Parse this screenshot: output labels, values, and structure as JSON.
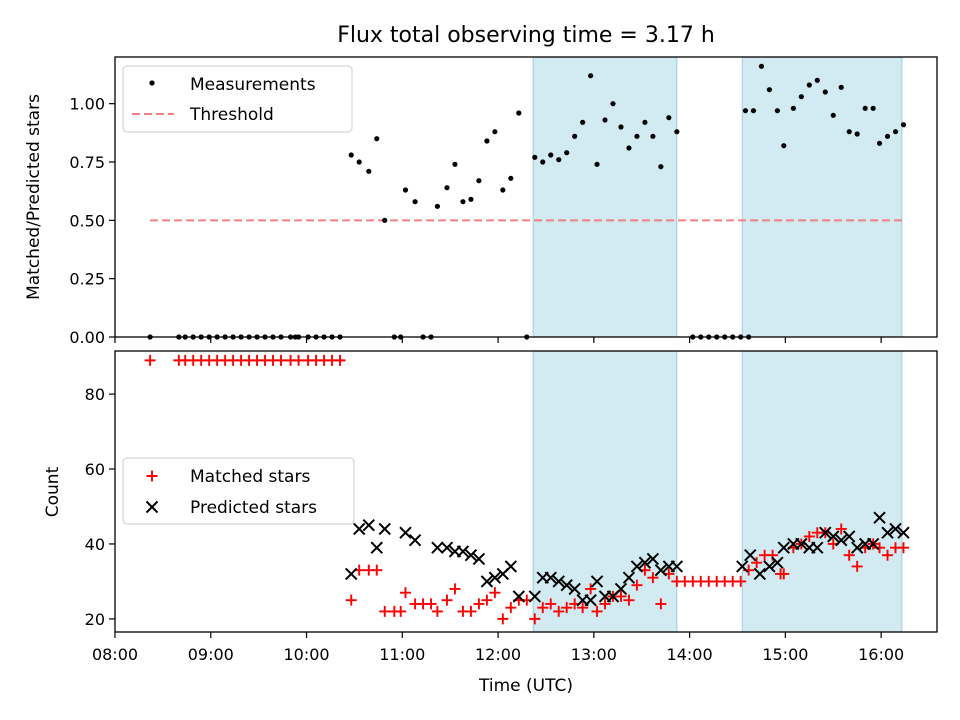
{
  "chart_data": [
    {
      "type": "scatter",
      "title": "Flux total observing time = 3.17 h",
      "xlabel": "",
      "ylabel": "Matched/Predicted stars",
      "xlim": [
        "08:00",
        "16:35"
      ],
      "ylim": [
        0.0,
        1.2
      ],
      "yticks": [
        "0.00",
        "0.25",
        "0.50",
        "0.75",
        "1.00"
      ],
      "yticks_values": [
        0,
        0.25,
        0.5,
        0.75,
        1.0
      ],
      "xtick_labels_visible": false,
      "grid": false,
      "legend_position": "upper-left",
      "shaded_intervals": [
        [
          "12:22",
          "13:52"
        ],
        [
          "14:33",
          "16:13"
        ]
      ],
      "shade_color": "#add8e6",
      "threshold": {
        "name": "Threshold",
        "value": 0.5,
        "x_range": [
          "08:22",
          "16:13"
        ],
        "color": "#f08080",
        "style": "dashed"
      },
      "series": [
        {
          "name": "Measurements",
          "marker": "dot",
          "color": "#000000",
          "points": [
            [
              "08:22",
              0.0
            ],
            [
              "08:40",
              0.0
            ],
            [
              "08:44",
              0.0
            ],
            [
              "08:49",
              0.0
            ],
            [
              "08:54",
              0.0
            ],
            [
              "08:59",
              0.0
            ],
            [
              "09:04",
              0.0
            ],
            [
              "09:09",
              0.0
            ],
            [
              "09:14",
              0.0
            ],
            [
              "09:19",
              0.0
            ],
            [
              "09:24",
              0.0
            ],
            [
              "09:29",
              0.0
            ],
            [
              "09:34",
              0.0
            ],
            [
              "09:39",
              0.0
            ],
            [
              "09:44",
              0.0
            ],
            [
              "09:50",
              0.0
            ],
            [
              "09:53",
              0.0
            ],
            [
              "09:55",
              0.0
            ],
            [
              "10:01",
              0.0
            ],
            [
              "10:06",
              0.0
            ],
            [
              "10:11",
              0.0
            ],
            [
              "10:16",
              0.0
            ],
            [
              "10:21",
              0.0
            ],
            [
              "10:28",
              0.78
            ],
            [
              "10:33",
              0.75
            ],
            [
              "10:39",
              0.71
            ],
            [
              "10:44",
              0.85
            ],
            [
              "10:49",
              0.5
            ],
            [
              "10:55",
              0.0
            ],
            [
              "10:59",
              0.0
            ],
            [
              "11:02",
              0.63
            ],
            [
              "11:08",
              0.58
            ],
            [
              "11:13",
              0.0
            ],
            [
              "11:18",
              0.0
            ],
            [
              "11:22",
              0.56
            ],
            [
              "11:28",
              0.64
            ],
            [
              "11:33",
              0.74
            ],
            [
              "11:38",
              0.58
            ],
            [
              "11:43",
              0.59
            ],
            [
              "11:48",
              0.67
            ],
            [
              "11:53",
              0.84
            ],
            [
              "11:58",
              0.88
            ],
            [
              "12:03",
              0.63
            ],
            [
              "12:08",
              0.68
            ],
            [
              "12:13",
              0.96
            ],
            [
              "12:18",
              0.0
            ],
            [
              "12:23",
              0.77
            ],
            [
              "12:28",
              0.75
            ],
            [
              "12:33",
              0.78
            ],
            [
              "12:38",
              0.76
            ],
            [
              "12:43",
              0.79
            ],
            [
              "12:48",
              0.86
            ],
            [
              "12:53",
              0.92
            ],
            [
              "12:58",
              1.12
            ],
            [
              "13:02",
              0.74
            ],
            [
              "13:07",
              0.93
            ],
            [
              "13:12",
              1.0
            ],
            [
              "13:17",
              0.9
            ],
            [
              "13:22",
              0.81
            ],
            [
              "13:27",
              0.86
            ],
            [
              "13:32",
              0.92
            ],
            [
              "13:37",
              0.86
            ],
            [
              "13:42",
              0.73
            ],
            [
              "13:47",
              0.94
            ],
            [
              "13:52",
              0.88
            ],
            [
              "14:02",
              0.0
            ],
            [
              "14:07",
              0.0
            ],
            [
              "14:12",
              0.0
            ],
            [
              "14:17",
              0.0
            ],
            [
              "14:22",
              0.0
            ],
            [
              "14:27",
              0.0
            ],
            [
              "14:32",
              0.0
            ],
            [
              "14:37",
              0.0
            ],
            [
              "14:35",
              0.97
            ],
            [
              "14:40",
              0.97
            ],
            [
              "14:45",
              1.16
            ],
            [
              "14:50",
              1.06
            ],
            [
              "14:55",
              0.97
            ],
            [
              "14:59",
              0.82
            ],
            [
              "15:05",
              0.98
            ],
            [
              "15:10",
              1.03
            ],
            [
              "15:15",
              1.08
            ],
            [
              "15:20",
              1.1
            ],
            [
              "15:25",
              1.05
            ],
            [
              "15:30",
              0.95
            ],
            [
              "15:35",
              1.07
            ],
            [
              "15:40",
              0.88
            ],
            [
              "15:45",
              0.87
            ],
            [
              "15:50",
              0.98
            ],
            [
              "15:55",
              0.98
            ],
            [
              "15:59",
              0.83
            ],
            [
              "16:04",
              0.86
            ],
            [
              "16:09",
              0.88
            ],
            [
              "16:14",
              0.91
            ]
          ]
        }
      ]
    },
    {
      "type": "scatter",
      "title": "",
      "xlabel": "Time (UTC)",
      "ylabel": "Count",
      "xlim": [
        "08:00",
        "16:35"
      ],
      "ylim": [
        16.5,
        91.5
      ],
      "yticks": [
        "20",
        "40",
        "60",
        "80"
      ],
      "yticks_values": [
        20,
        40,
        60,
        80
      ],
      "xticks": [
        "08:00",
        "09:00",
        "10:00",
        "11:00",
        "12:00",
        "13:00",
        "14:00",
        "15:00",
        "16:00"
      ],
      "grid": false,
      "legend_position": "center-left",
      "shaded_intervals": [
        [
          "12:22",
          "13:52"
        ],
        [
          "14:33",
          "16:13"
        ]
      ],
      "shade_color": "#add8e6",
      "series": [
        {
          "name": "Matched stars",
          "marker": "plus",
          "color": "#ff0000",
          "points": [
            [
              "08:22",
              89
            ],
            [
              "08:40",
              89
            ],
            [
              "08:44",
              89
            ],
            [
              "08:49",
              89
            ],
            [
              "08:54",
              89
            ],
            [
              "08:59",
              89
            ],
            [
              "09:04",
              89
            ],
            [
              "09:09",
              89
            ],
            [
              "09:14",
              89
            ],
            [
              "09:19",
              89
            ],
            [
              "09:24",
              89
            ],
            [
              "09:29",
              89
            ],
            [
              "09:34",
              89
            ],
            [
              "09:39",
              89
            ],
            [
              "09:44",
              89
            ],
            [
              "09:50",
              89
            ],
            [
              "09:55",
              89
            ],
            [
              "10:01",
              89
            ],
            [
              "10:06",
              89
            ],
            [
              "10:11",
              89
            ],
            [
              "10:16",
              89
            ],
            [
              "10:21",
              89
            ],
            [
              "10:28",
              25
            ],
            [
              "10:33",
              33
            ],
            [
              "10:39",
              33
            ],
            [
              "10:44",
              33
            ],
            [
              "10:49",
              22
            ],
            [
              "10:55",
              22
            ],
            [
              "10:59",
              22
            ],
            [
              "11:02",
              27
            ],
            [
              "11:08",
              24
            ],
            [
              "11:13",
              24
            ],
            [
              "11:18",
              24
            ],
            [
              "11:22",
              22
            ],
            [
              "11:28",
              25
            ],
            [
              "11:33",
              28
            ],
            [
              "11:38",
              22
            ],
            [
              "11:43",
              22
            ],
            [
              "11:48",
              24
            ],
            [
              "11:53",
              25
            ],
            [
              "11:58",
              27
            ],
            [
              "12:03",
              20
            ],
            [
              "12:08",
              23
            ],
            [
              "12:13",
              25
            ],
            [
              "12:18",
              25
            ],
            [
              "12:23",
              20
            ],
            [
              "12:28",
              23
            ],
            [
              "12:33",
              24
            ],
            [
              "12:38",
              22
            ],
            [
              "12:43",
              23
            ],
            [
              "12:48",
              24
            ],
            [
              "12:53",
              23
            ],
            [
              "12:58",
              28
            ],
            [
              "13:02",
              22
            ],
            [
              "13:07",
              24
            ],
            [
              "13:12",
              26
            ],
            [
              "13:17",
              26
            ],
            [
              "13:22",
              25
            ],
            [
              "13:27",
              29
            ],
            [
              "13:32",
              33
            ],
            [
              "13:37",
              31
            ],
            [
              "13:42",
              24
            ],
            [
              "13:47",
              32
            ],
            [
              "13:52",
              30
            ],
            [
              "13:57",
              30
            ],
            [
              "14:02",
              30
            ],
            [
              "14:07",
              30
            ],
            [
              "14:12",
              30
            ],
            [
              "14:17",
              30
            ],
            [
              "14:22",
              30
            ],
            [
              "14:27",
              30
            ],
            [
              "14:32",
              30
            ],
            [
              "14:37",
              33
            ],
            [
              "14:42",
              35
            ],
            [
              "14:47",
              37
            ],
            [
              "14:52",
              37
            ],
            [
              "14:57",
              32
            ],
            [
              "14:59",
              32
            ],
            [
              "15:05",
              39
            ],
            [
              "15:10",
              40
            ],
            [
              "15:15",
              42
            ],
            [
              "15:20",
              43
            ],
            [
              "15:25",
              43
            ],
            [
              "15:30",
              40
            ],
            [
              "15:35",
              44
            ],
            [
              "15:40",
              37
            ],
            [
              "15:45",
              34
            ],
            [
              "15:50",
              39
            ],
            [
              "15:55",
              40
            ],
            [
              "15:59",
              39
            ],
            [
              "16:04",
              37
            ],
            [
              "16:09",
              39
            ],
            [
              "16:14",
              39
            ]
          ]
        },
        {
          "name": "Predicted stars",
          "marker": "x",
          "color": "#000000",
          "points": [
            [
              "10:28",
              32
            ],
            [
              "10:33",
              44
            ],
            [
              "10:39",
              45
            ],
            [
              "10:44",
              39
            ],
            [
              "10:49",
              44
            ],
            [
              "11:02",
              43
            ],
            [
              "11:08",
              41
            ],
            [
              "11:22",
              39
            ],
            [
              "11:28",
              39
            ],
            [
              "11:33",
              38
            ],
            [
              "11:38",
              38
            ],
            [
              "11:43",
              37
            ],
            [
              "11:48",
              36
            ],
            [
              "11:53",
              30
            ],
            [
              "11:58",
              31
            ],
            [
              "12:03",
              32
            ],
            [
              "12:08",
              34
            ],
            [
              "12:13",
              26
            ],
            [
              "12:23",
              26
            ],
            [
              "12:28",
              31
            ],
            [
              "12:33",
              31
            ],
            [
              "12:38",
              30
            ],
            [
              "12:43",
              29
            ],
            [
              "12:48",
              28
            ],
            [
              "12:53",
              25
            ],
            [
              "12:58",
              25
            ],
            [
              "13:02",
              30
            ],
            [
              "13:07",
              26
            ],
            [
              "13:12",
              26
            ],
            [
              "13:17",
              28
            ],
            [
              "13:22",
              31
            ],
            [
              "13:27",
              34
            ],
            [
              "13:32",
              35
            ],
            [
              "13:37",
              36
            ],
            [
              "13:42",
              33
            ],
            [
              "13:47",
              34
            ],
            [
              "13:52",
              34
            ],
            [
              "14:33",
              34
            ],
            [
              "14:38",
              37
            ],
            [
              "14:44",
              32
            ],
            [
              "14:50",
              34
            ],
            [
              "14:55",
              35
            ],
            [
              "14:59",
              39
            ],
            [
              "15:05",
              40
            ],
            [
              "15:10",
              40
            ],
            [
              "15:15",
              39
            ],
            [
              "15:20",
              39
            ],
            [
              "15:25",
              43
            ],
            [
              "15:30",
              42
            ],
            [
              "15:35",
              41
            ],
            [
              "15:40",
              42
            ],
            [
              "15:45",
              39
            ],
            [
              "15:50",
              40
            ],
            [
              "15:55",
              40
            ],
            [
              "15:59",
              47
            ],
            [
              "16:04",
              43
            ],
            [
              "16:09",
              44
            ],
            [
              "16:14",
              43
            ]
          ]
        }
      ]
    }
  ]
}
